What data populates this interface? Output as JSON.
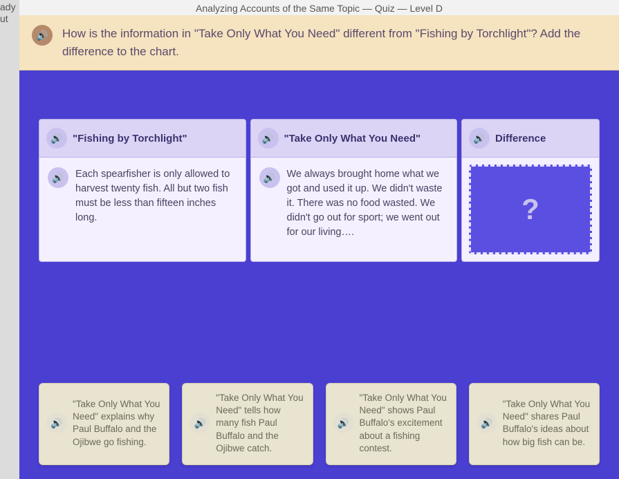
{
  "left_edge": {
    "line1": "ady",
    "line2": "ut"
  },
  "titlebar": "Analyzing Accounts of the Same Topic — Quiz — Level D",
  "prompt": "How is the information in \"Take Only What You Need\" different from \"Fishing by Torchlight\"? Add the difference to the chart.",
  "columns": {
    "left": {
      "header": "\"Fishing by Torchlight\"",
      "body": "Each spearfisher is only allowed to harvest twenty fish. All but two fish must be less than fifteen inches long."
    },
    "middle": {
      "header": "\"Take Only What You Need\"",
      "body": "We always brought home what we got and used it up. We didn't waste it. There was no food wasted. We didn't go out for sport; we went out for our living…."
    },
    "right": {
      "header": "Difference",
      "placeholder": "?"
    }
  },
  "choices": [
    "\"Take Only What You Need\" explains why Paul Buffalo and the Ojibwe go fishing.",
    "\"Take Only What You Need\" tells how many fish Paul Buffalo and the Ojibwe catch.",
    "\"Take Only What You Need\" shows Paul Buffalo's excitement about a fishing contest.",
    "\"Take Only What You Need\" shares Paul Buffalo's ideas about how big fish can be."
  ],
  "colors": {
    "page_bg": "#4a3fd1",
    "prompt_bg": "#f6e3c0",
    "card_bg": "#f4f0ff",
    "card_header_bg": "#dcd4f5",
    "choice_bg": "#e9e4cf",
    "drop_bg": "#5a4fe0",
    "drop_border": "#e8e4ff"
  },
  "audio_glyph": "🔊"
}
